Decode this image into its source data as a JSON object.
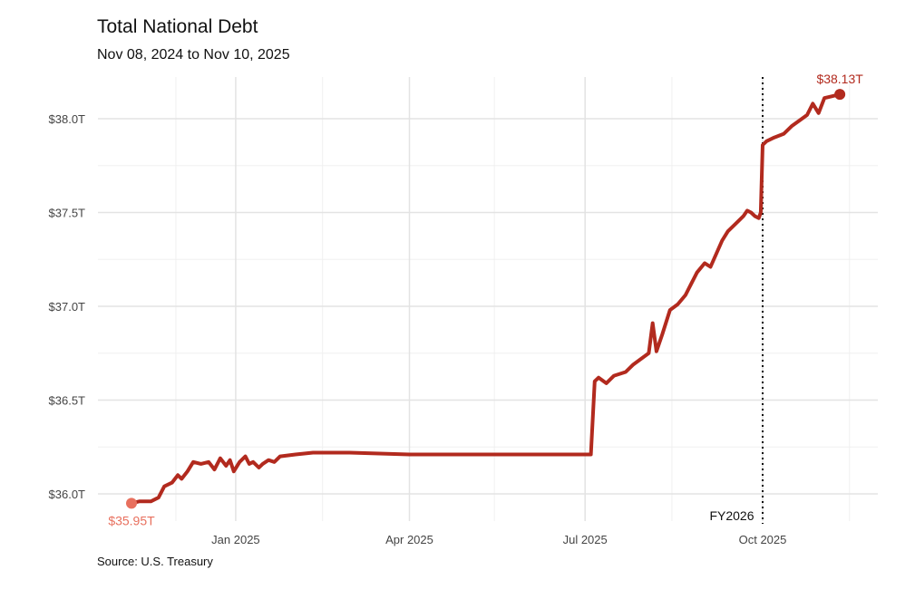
{
  "chart_data": {
    "type": "line",
    "title": "Total National Debt",
    "subtitle": "Nov 08, 2024 to Nov 10, 2025",
    "source": "Source: U.S. Treasury",
    "x_range": [
      "2024-11-08",
      "2025-11-10"
    ],
    "ylim": [
      35.9,
      38.2
    ],
    "y_ticks": [
      {
        "value": 36.0,
        "label": "$36.0T"
      },
      {
        "value": 36.5,
        "label": "$36.5T"
      },
      {
        "value": 37.0,
        "label": "$37.0T"
      },
      {
        "value": 37.5,
        "label": "$37.5T"
      },
      {
        "value": 38.0,
        "label": "$38.0T"
      }
    ],
    "x_ticks": [
      {
        "date": "2025-01-01",
        "label": "Jan 2025"
      },
      {
        "date": "2025-04-01",
        "label": "Apr 2025"
      },
      {
        "date": "2025-07-01",
        "label": "Jul 2025"
      },
      {
        "date": "2025-10-01",
        "label": "Oct 2025"
      }
    ],
    "x_minor_ticks": [
      "2024-12-01",
      "2025-02-15",
      "2025-05-15",
      "2025-08-15",
      "2025-11-15"
    ],
    "grid": true,
    "legend": "none",
    "series": [
      {
        "color": "#b22a1e",
        "points": [
          [
            "2024-11-08",
            35.95
          ],
          [
            "2024-11-12",
            35.96
          ],
          [
            "2024-11-18",
            35.96
          ],
          [
            "2024-11-22",
            35.98
          ],
          [
            "2024-11-25",
            36.04
          ],
          [
            "2024-11-29",
            36.06
          ],
          [
            "2024-12-02",
            36.1
          ],
          [
            "2024-12-04",
            36.08
          ],
          [
            "2024-12-07",
            36.12
          ],
          [
            "2024-12-10",
            36.17
          ],
          [
            "2024-12-14",
            36.16
          ],
          [
            "2024-12-18",
            36.17
          ],
          [
            "2024-12-21",
            36.13
          ],
          [
            "2024-12-24",
            36.19
          ],
          [
            "2024-12-27",
            36.15
          ],
          [
            "2024-12-29",
            36.18
          ],
          [
            "2024-12-31",
            36.12
          ],
          [
            "2025-01-03",
            36.17
          ],
          [
            "2025-01-06",
            36.2
          ],
          [
            "2025-01-08",
            36.16
          ],
          [
            "2025-01-10",
            36.17
          ],
          [
            "2025-01-13",
            36.14
          ],
          [
            "2025-01-15",
            36.16
          ],
          [
            "2025-01-18",
            36.18
          ],
          [
            "2025-01-21",
            36.17
          ],
          [
            "2025-01-24",
            36.2
          ],
          [
            "2025-02-01",
            36.21
          ],
          [
            "2025-02-10",
            36.22
          ],
          [
            "2025-03-01",
            36.22
          ],
          [
            "2025-04-01",
            36.21
          ],
          [
            "2025-05-01",
            36.21
          ],
          [
            "2025-06-01",
            36.21
          ],
          [
            "2025-06-30",
            36.21
          ],
          [
            "2025-07-04",
            36.21
          ],
          [
            "2025-07-06",
            36.6
          ],
          [
            "2025-07-08",
            36.62
          ],
          [
            "2025-07-12",
            36.59
          ],
          [
            "2025-07-16",
            36.63
          ],
          [
            "2025-07-22",
            36.65
          ],
          [
            "2025-07-26",
            36.69
          ],
          [
            "2025-07-30",
            36.72
          ],
          [
            "2025-08-03",
            36.75
          ],
          [
            "2025-08-05",
            36.91
          ],
          [
            "2025-08-07",
            36.76
          ],
          [
            "2025-08-10",
            36.85
          ],
          [
            "2025-08-14",
            36.98
          ],
          [
            "2025-08-18",
            37.01
          ],
          [
            "2025-08-22",
            37.06
          ],
          [
            "2025-08-25",
            37.12
          ],
          [
            "2025-08-28",
            37.18
          ],
          [
            "2025-09-01",
            37.23
          ],
          [
            "2025-09-04",
            37.21
          ],
          [
            "2025-09-07",
            37.28
          ],
          [
            "2025-09-10",
            37.35
          ],
          [
            "2025-09-13",
            37.4
          ],
          [
            "2025-09-17",
            37.44
          ],
          [
            "2025-09-21",
            37.48
          ],
          [
            "2025-09-23",
            37.51
          ],
          [
            "2025-09-25",
            37.5
          ],
          [
            "2025-09-27",
            37.48
          ],
          [
            "2025-09-29",
            37.47
          ],
          [
            "2025-09-30",
            37.5
          ],
          [
            "2025-10-01",
            37.86
          ],
          [
            "2025-10-03",
            37.88
          ],
          [
            "2025-10-07",
            37.9
          ],
          [
            "2025-10-12",
            37.92
          ],
          [
            "2025-10-16",
            37.96
          ],
          [
            "2025-10-20",
            37.99
          ],
          [
            "2025-10-24",
            38.02
          ],
          [
            "2025-10-27",
            38.08
          ],
          [
            "2025-10-30",
            38.03
          ],
          [
            "2025-11-02",
            38.11
          ],
          [
            "2025-11-06",
            38.12
          ],
          [
            "2025-11-10",
            38.13
          ]
        ]
      }
    ],
    "start_annotation": {
      "date": "2024-11-08",
      "value": 35.95,
      "label": "$35.95T",
      "color": "#e8705e"
    },
    "end_annotation": {
      "date": "2025-11-10",
      "value": 38.13,
      "label": "$38.13T",
      "color": "#b22a1e"
    },
    "vertical_marker": {
      "date": "2025-10-01",
      "label": "FY2026"
    }
  }
}
